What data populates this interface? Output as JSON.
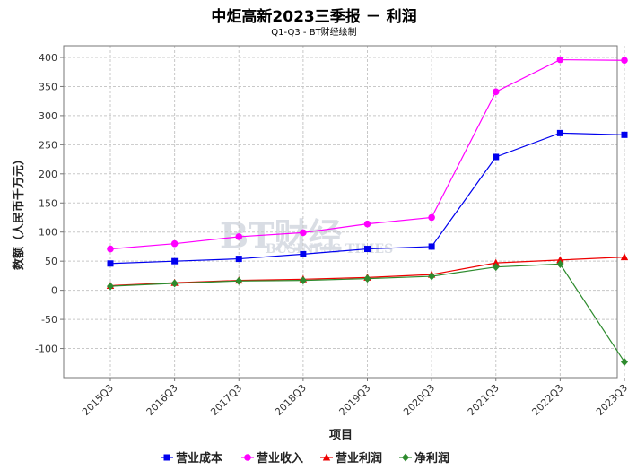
{
  "title": "中炬高新2023三季报 － 利润",
  "subtitle": "Q1-Q3 - BT财经绘制",
  "watermark": {
    "main": "BT财经",
    "sub": "BUSINESS TIMES"
  },
  "chart_data": {
    "type": "line",
    "xlabel": "项目",
    "ylabel": "数额（人民币千万元）",
    "ylim": [
      -150,
      420
    ],
    "yticks": [
      -100,
      -50,
      0,
      50,
      100,
      150,
      200,
      250,
      300,
      350,
      400
    ],
    "categories": [
      "2015Q3",
      "2016Q3",
      "2017Q3",
      "2018Q3",
      "2019Q3",
      "2020Q3",
      "2021Q3",
      "2022Q3",
      "2023Q3"
    ],
    "grid": true,
    "legend_position": "bottom",
    "series": [
      {
        "name": "营业成本",
        "color": "#0000ee",
        "marker": "square",
        "values": [
          46,
          50,
          54,
          62,
          71,
          75,
          229,
          270,
          267
        ]
      },
      {
        "name": "营业收入",
        "color": "#ff00ff",
        "marker": "circle",
        "values": [
          71,
          80,
          92,
          99,
          114,
          125,
          341,
          396,
          395
        ]
      },
      {
        "name": "营业利润",
        "color": "#ee0000",
        "marker": "triangle",
        "values": [
          8,
          13,
          17,
          19,
          22,
          27,
          47,
          52,
          57
        ]
      },
      {
        "name": "净利润",
        "color": "#2e8b2e",
        "marker": "diamond",
        "values": [
          7,
          12,
          16,
          17,
          20,
          24,
          40,
          45,
          -123
        ]
      }
    ]
  }
}
